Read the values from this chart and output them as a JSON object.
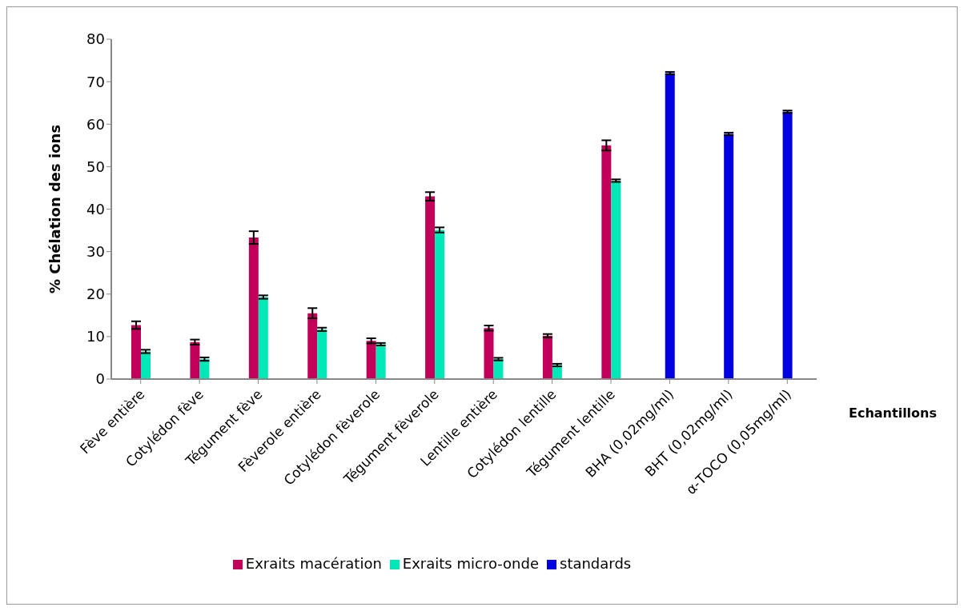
{
  "chart_data": {
    "type": "bar",
    "ylabel": "%  Chélation des ions",
    "xlabel": "Echantillons",
    "categories": [
      "Fève entière",
      "Cotylédon fève",
      "Tégument fève",
      "Fèverole entière",
      "Cotylédon fèverole",
      "Tégument fèverole",
      "Lentille entière",
      "Cotylédon lentille",
      "Tégument lentille",
      "BHA (0,02mg/ml)",
      "BHT (0,02mg/ml)",
      "α-TOCO (0,05mg/ml)"
    ],
    "series": [
      {
        "name": "Exraits macération",
        "color": "#c2005a",
        "values": [
          12.7,
          8.7,
          33.3,
          15.5,
          9,
          43,
          12,
          10.2,
          55,
          null,
          null,
          null
        ],
        "errors": [
          0.9,
          0.6,
          1.5,
          1.2,
          0.6,
          1,
          0.6,
          0.4,
          1.2,
          null,
          null,
          null
        ]
      },
      {
        "name": "Exraits micro-onde",
        "color": "#00e8b8",
        "values": [
          6.5,
          4.7,
          19.3,
          11.7,
          8.2,
          35.1,
          4.7,
          3.3,
          46.7,
          null,
          null,
          null
        ],
        "errors": [
          0.4,
          0.4,
          0.4,
          0.4,
          0.3,
          0.6,
          0.3,
          0.3,
          0.3,
          null,
          null,
          null
        ]
      },
      {
        "name": "standards",
        "color": "#0000e0",
        "values": [
          null,
          null,
          null,
          null,
          null,
          null,
          null,
          null,
          null,
          72,
          57.7,
          62.9
        ],
        "errors": [
          null,
          null,
          null,
          null,
          null,
          null,
          null,
          null,
          null,
          0.3,
          0.3,
          0.3
        ]
      }
    ],
    "ylim": [
      0,
      80
    ],
    "yticks": [
      0,
      10,
      20,
      30,
      40,
      50,
      60,
      70,
      80
    ],
    "legend": "bottom"
  }
}
